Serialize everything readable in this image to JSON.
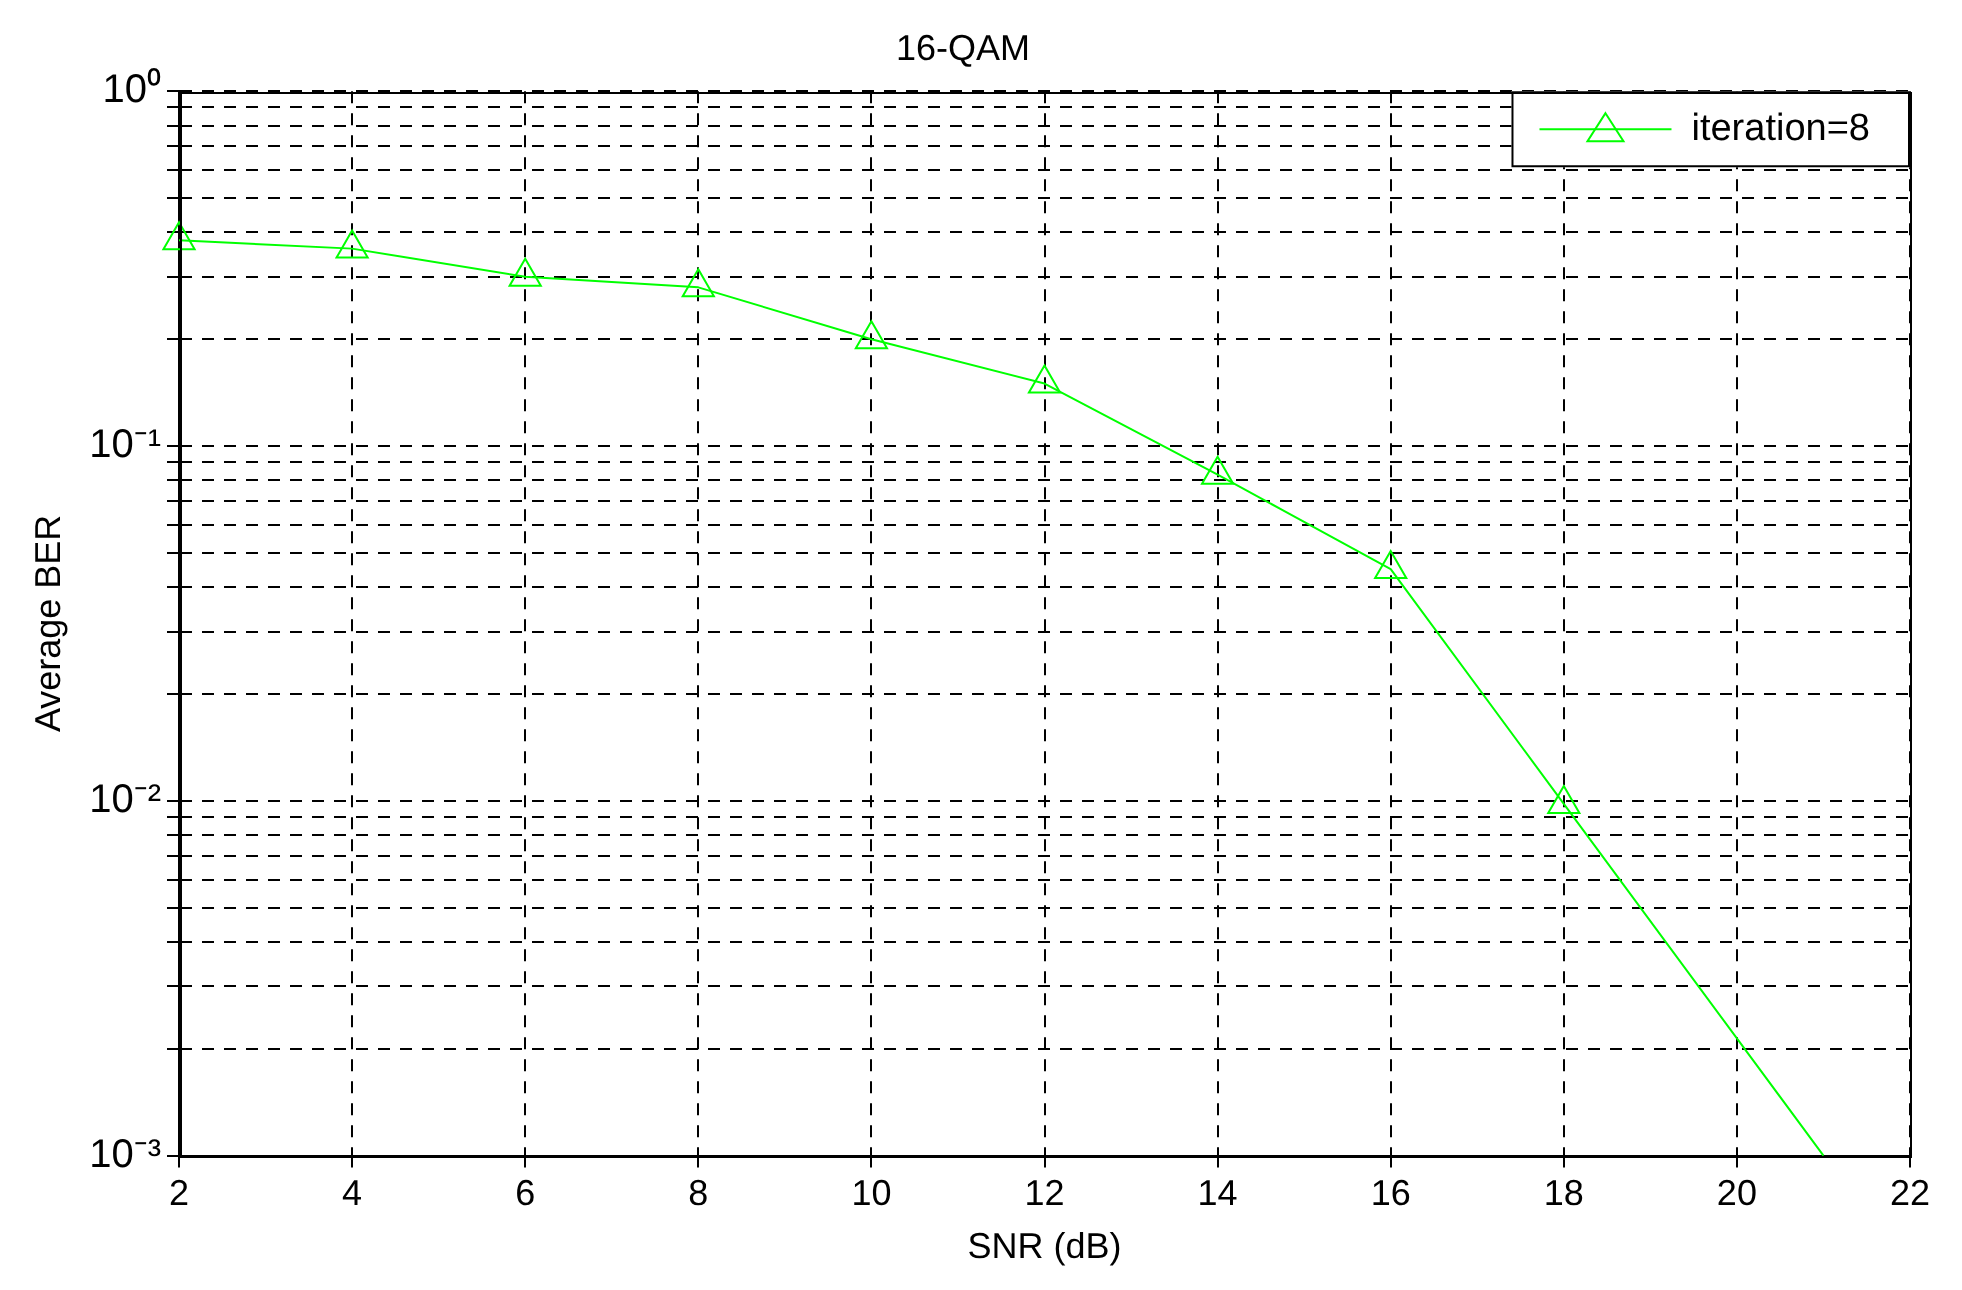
{
  "chart_data": {
    "type": "line",
    "title": "16-QAM",
    "xlabel": "SNR (dB)",
    "ylabel": "Average BER",
    "x": [
      2,
      4,
      6,
      8,
      10,
      12,
      14,
      16,
      18,
      21
    ],
    "series": [
      {
        "name": "iteration=8",
        "color": "#00ff00",
        "values": [
          0.38,
          0.36,
          0.3,
          0.28,
          0.2,
          0.15,
          0.083,
          0.045,
          0.0098,
          0.001
        ]
      }
    ],
    "xlim": [
      2,
      22
    ],
    "xticks": [
      2,
      4,
      6,
      8,
      10,
      12,
      14,
      16,
      18,
      20,
      22
    ],
    "ylim": [
      0.001,
      1
    ],
    "yticks": [
      {
        "value": 0.001,
        "label": "10⁻³"
      },
      {
        "value": 0.002,
        "label": null
      },
      {
        "value": 0.003,
        "label": null
      },
      {
        "value": 0.004,
        "label": null
      },
      {
        "value": 0.005,
        "label": null
      },
      {
        "value": 0.006,
        "label": null
      },
      {
        "value": 0.007,
        "label": null
      },
      {
        "value": 0.008,
        "label": null
      },
      {
        "value": 0.009,
        "label": null
      },
      {
        "value": 0.01,
        "label": "10⁻²"
      },
      {
        "value": 0.02,
        "label": null
      },
      {
        "value": 0.03,
        "label": null
      },
      {
        "value": 0.04,
        "label": null
      },
      {
        "value": 0.05,
        "label": null
      },
      {
        "value": 0.06,
        "label": null
      },
      {
        "value": 0.07,
        "label": null
      },
      {
        "value": 0.08,
        "label": null
      },
      {
        "value": 0.09,
        "label": null
      },
      {
        "value": 0.1,
        "label": "10⁻¹"
      },
      {
        "value": 0.2,
        "label": null
      },
      {
        "value": 0.3,
        "label": null
      },
      {
        "value": 0.4,
        "label": null
      },
      {
        "value": 0.5,
        "label": null
      },
      {
        "value": 0.6,
        "label": null
      },
      {
        "value": 0.7,
        "label": null
      },
      {
        "value": 0.8,
        "label": null
      },
      {
        "value": 0.9,
        "label": null
      },
      {
        "value": 1,
        "label": "10⁰"
      }
    ],
    "log": "y",
    "grid": true,
    "legend": "top right",
    "marker": "triangle",
    "line_style": "solid"
  }
}
